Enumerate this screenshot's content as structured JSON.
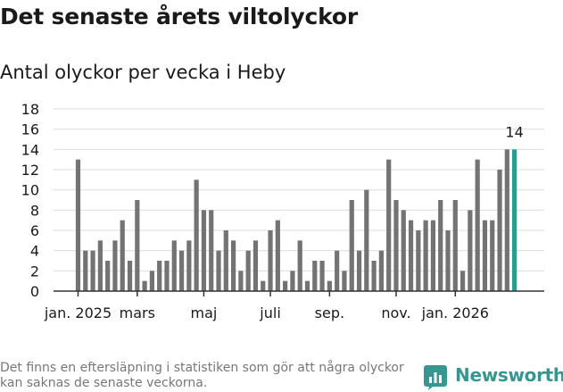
{
  "header": {
    "title": "Det senaste årets viltolyckor",
    "subtitle": "Antal olyckor per vecka i Heby"
  },
  "footer": {
    "note": "Det finns en eftersläpning i statistiken som gör att några olyckor kan saknas de senaste veckorna.",
    "brand": "Newsworthy",
    "brand_icon": "bar-chart-logo-icon"
  },
  "colors": {
    "bar": "#737373",
    "highlight": "#2a9d8f",
    "grid": "#dddddd",
    "axis": "#333333",
    "brand": "#37968f"
  },
  "chart_data": {
    "type": "bar",
    "title": "",
    "xlabel": "",
    "ylabel": "",
    "ylim": [
      0,
      18
    ],
    "yticks": [
      0,
      2,
      4,
      6,
      8,
      10,
      12,
      14,
      16,
      18
    ],
    "grid": true,
    "values": [
      13,
      4,
      4,
      5,
      3,
      5,
      7,
      3,
      9,
      1,
      2,
      3,
      3,
      5,
      4,
      5,
      11,
      8,
      8,
      4,
      6,
      5,
      2,
      4,
      5,
      1,
      6,
      7,
      1,
      2,
      5,
      1,
      3,
      3,
      1,
      4,
      2,
      9,
      4,
      10,
      3,
      4,
      13,
      9,
      8,
      7,
      6,
      7,
      7,
      9,
      6,
      9,
      2,
      8,
      13,
      7,
      7,
      12,
      14,
      14
    ],
    "highlight_index": 59,
    "highlight_label": "14",
    "x_ticks": [
      {
        "index": 0,
        "label": "jan. 2025"
      },
      {
        "index": 8,
        "label": "mars"
      },
      {
        "index": 17,
        "label": "maj"
      },
      {
        "index": 26,
        "label": "juli"
      },
      {
        "index": 34,
        "label": "sep."
      },
      {
        "index": 43,
        "label": "nov."
      },
      {
        "index": 51,
        "label": "jan. 2026"
      }
    ]
  }
}
